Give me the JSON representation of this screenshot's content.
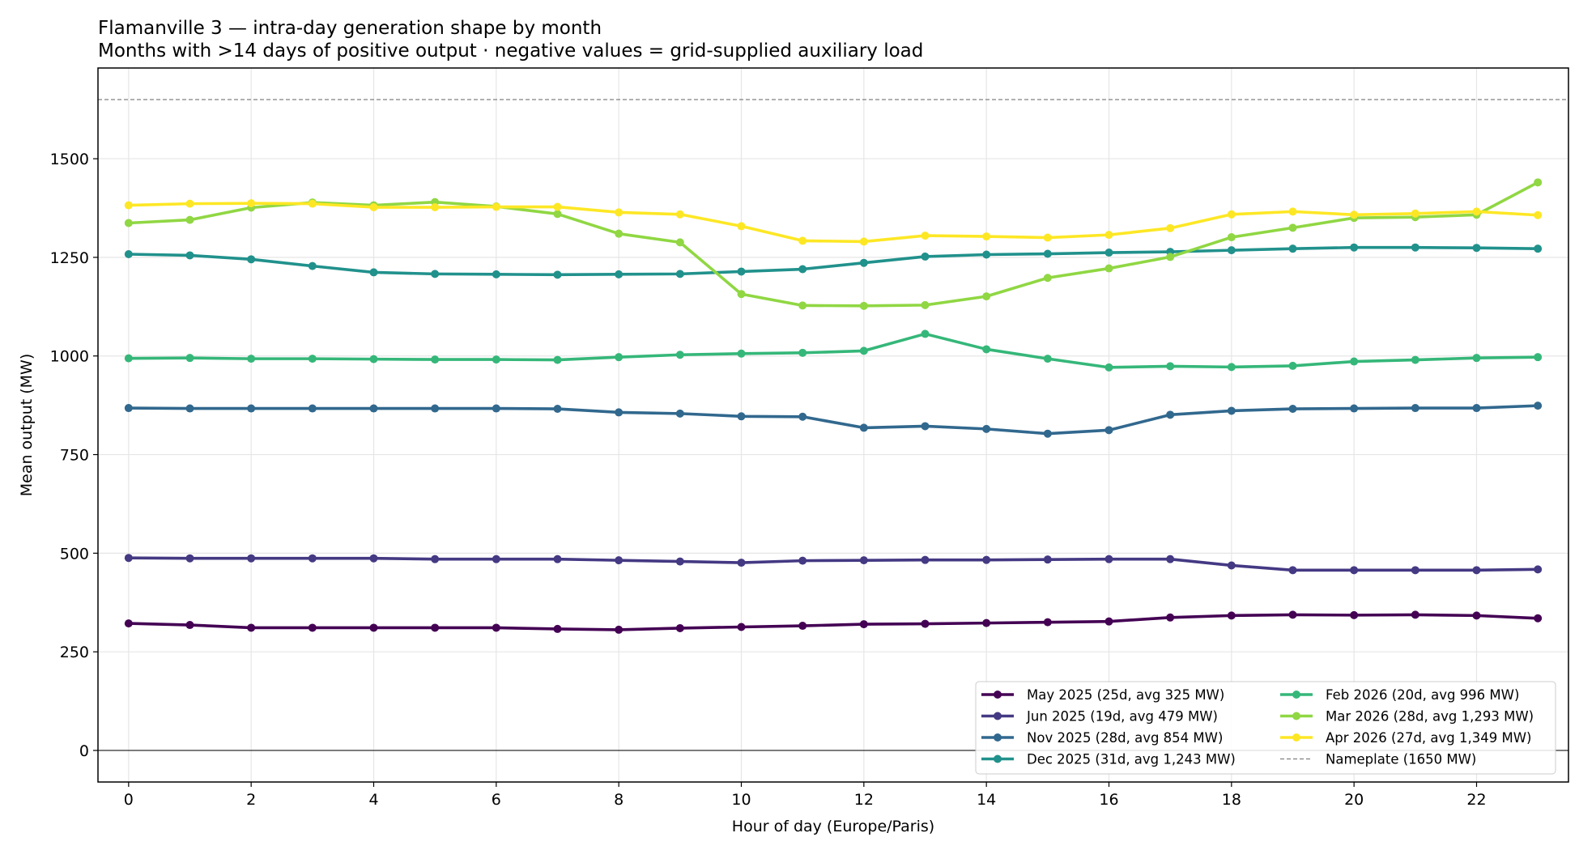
{
  "chart_data": {
    "type": "line",
    "title": "Flamanville 3 — intra-day generation shape by month",
    "subtitle": "Months with >14 days of positive output · negative values = grid-supplied auxiliary load",
    "xlabel": "Hour of day (Europe/Paris)",
    "ylabel": "Mean output (MW)",
    "xlim": [
      -0.5,
      23.5
    ],
    "ylim": [
      -80,
      1730
    ],
    "x": [
      0,
      1,
      2,
      3,
      4,
      5,
      6,
      7,
      8,
      9,
      10,
      11,
      12,
      13,
      14,
      15,
      16,
      17,
      18,
      19,
      20,
      21,
      22,
      23
    ],
    "x_ticks": [
      0,
      2,
      4,
      6,
      8,
      10,
      12,
      14,
      16,
      18,
      20,
      22
    ],
    "y_ticks": [
      0,
      250,
      500,
      750,
      1000,
      1250,
      1500
    ],
    "grid": true,
    "legend_location": "lower-right",
    "series": [
      {
        "name": "May 2025  (25d, avg 325 MW)",
        "color": "#440154",
        "values": [
          322,
          318,
          311,
          311,
          311,
          311,
          311,
          308,
          306,
          310,
          313,
          316,
          320,
          321,
          323,
          325,
          327,
          337,
          342,
          344,
          343,
          344,
          342,
          335
        ]
      },
      {
        "name": "Jun 2025  (19d, avg 479 MW)",
        "color": "#443983",
        "values": [
          488,
          487,
          487,
          487,
          487,
          485,
          485,
          485,
          482,
          479,
          476,
          481,
          482,
          483,
          483,
          484,
          485,
          485,
          469,
          457,
          457,
          457,
          457,
          459
        ]
      },
      {
        "name": "Nov 2025  (28d, avg 854 MW)",
        "color": "#31688e",
        "values": [
          868,
          867,
          867,
          867,
          867,
          867,
          867,
          866,
          857,
          854,
          847,
          846,
          818,
          822,
          815,
          803,
          812,
          851,
          861,
          866,
          867,
          868,
          868,
          874
        ]
      },
      {
        "name": "Dec 2025  (31d, avg 1,243 MW)",
        "color": "#21918c",
        "values": [
          1258,
          1255,
          1245,
          1228,
          1212,
          1208,
          1207,
          1206,
          1207,
          1208,
          1214,
          1220,
          1236,
          1252,
          1257,
          1259,
          1262,
          1264,
          1268,
          1272,
          1275,
          1275,
          1274,
          1272
        ]
      },
      {
        "name": "Feb 2026  (20d, avg 996 MW)",
        "color": "#35b779",
        "values": [
          994,
          995,
          993,
          993,
          992,
          991,
          991,
          990,
          997,
          1003,
          1006,
          1008,
          1013,
          1056,
          1017,
          993,
          971,
          974,
          972,
          975,
          986,
          990,
          995,
          997
        ]
      },
      {
        "name": "Mar 2026  (28d, avg 1,293 MW)",
        "color": "#90d743",
        "values": [
          1337,
          1345,
          1376,
          1389,
          1382,
          1390,
          1379,
          1360,
          1310,
          1288,
          1157,
          1128,
          1127,
          1129,
          1151,
          1198,
          1222,
          1251,
          1301,
          1325,
          1350,
          1352,
          1358,
          1440
        ]
      },
      {
        "name": "Apr 2026  (27d, avg 1,349 MW)",
        "color": "#fde725",
        "values": [
          1382,
          1386,
          1387,
          1386,
          1377,
          1377,
          1378,
          1378,
          1364,
          1359,
          1329,
          1292,
          1290,
          1305,
          1303,
          1300,
          1307,
          1324,
          1359,
          1366,
          1358,
          1361,
          1366,
          1357
        ]
      }
    ],
    "reference_line": {
      "name": "Nameplate (1650 MW)",
      "value": 1650,
      "color": "#808080",
      "style": "dashed"
    },
    "zero_line": {
      "value": 0,
      "color": "#000000"
    }
  }
}
